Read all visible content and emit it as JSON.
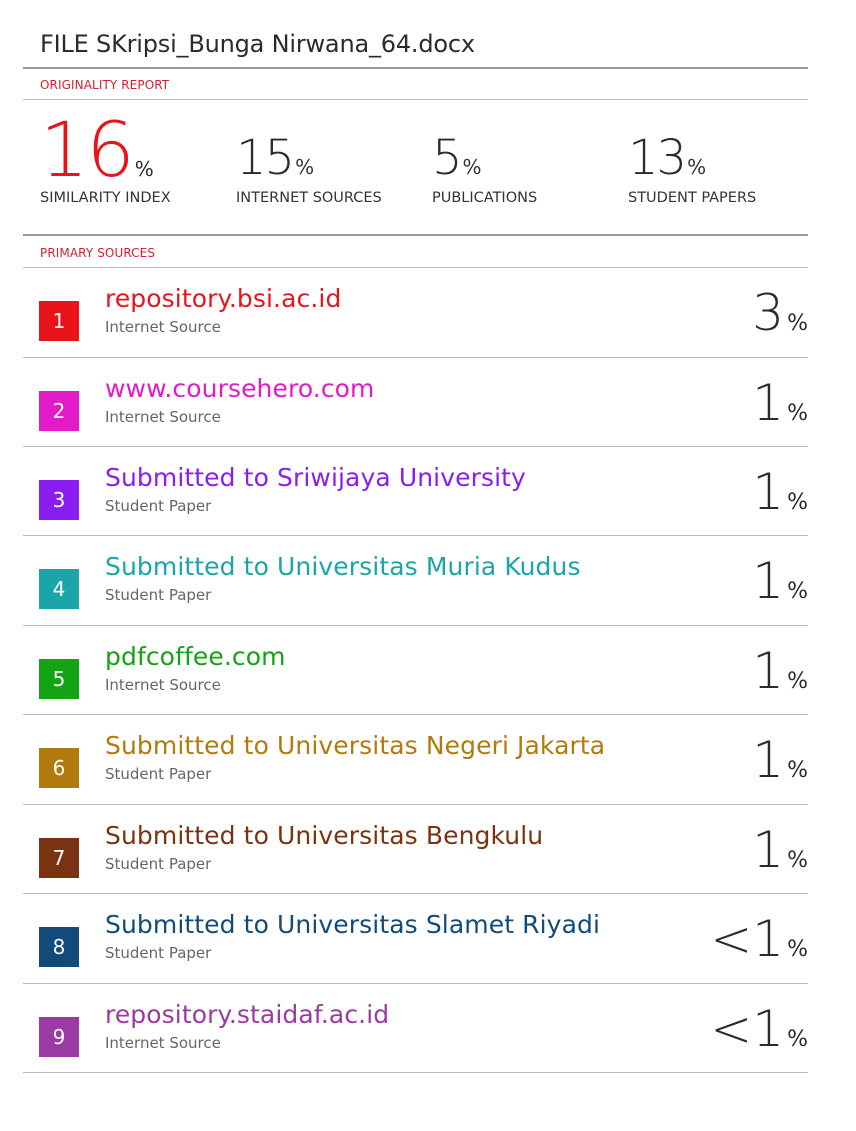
{
  "document": {
    "title": "FILE SKripsi_Bunga Nirwana_64.docx"
  },
  "report": {
    "label": "ORIGINALITY REPORT",
    "stats": [
      {
        "value": "16",
        "unit": "%",
        "label": "SIMILARITY INDEX",
        "color": "#e8141a"
      },
      {
        "value": "15",
        "unit": "%",
        "label": "INTERNET SOURCES",
        "color": "#2b2b2b"
      },
      {
        "value": "5",
        "unit": "%",
        "label": "PUBLICATIONS",
        "color": "#2b2b2b"
      },
      {
        "value": "13",
        "unit": "%",
        "label": "STUDENT PAPERS",
        "color": "#2b2b2b"
      }
    ]
  },
  "primary_sources": {
    "label": "PRIMARY SOURCES",
    "items": [
      {
        "rank": "1",
        "name": "repository.bsi.ac.id",
        "type": "Internet Source",
        "match": "3",
        "unit": "%",
        "color": "#e8141a"
      },
      {
        "rank": "2",
        "name": "www.coursehero.com",
        "type": "Internet Source",
        "match": "1",
        "unit": "%",
        "color": "#e21ac9"
      },
      {
        "rank": "3",
        "name": "Submitted to Sriwijaya University",
        "type": "Student Paper",
        "match": "1",
        "unit": "%",
        "color": "#8a1df0"
      },
      {
        "rank": "4",
        "name": "Submitted to Universitas Muria Kudus",
        "type": "Student Paper",
        "match": "1",
        "unit": "%",
        "color": "#1aa5a8"
      },
      {
        "rank": "5",
        "name": "pdfcoffee.com",
        "type": "Internet Source",
        "match": "1",
        "unit": "%",
        "color": "#13a313"
      },
      {
        "rank": "6",
        "name": "Submitted to Universitas Negeri Jakarta",
        "type": "Student Paper",
        "match": "1",
        "unit": "%",
        "color": "#b07a0c"
      },
      {
        "rank": "7",
        "name": "Submitted to Universitas Bengkulu",
        "type": "Student Paper",
        "match": "1",
        "unit": "%",
        "color": "#7a3310"
      },
      {
        "rank": "8",
        "name": "Submitted to Universitas Slamet Riyadi",
        "type": "Student Paper",
        "match": "<1",
        "unit": "%",
        "color": "#124a7a"
      },
      {
        "rank": "9",
        "name": "repository.staidaf.ac.id",
        "type": "Internet Source",
        "match": "<1",
        "unit": "%",
        "color": "#9b3aa3"
      }
    ]
  }
}
